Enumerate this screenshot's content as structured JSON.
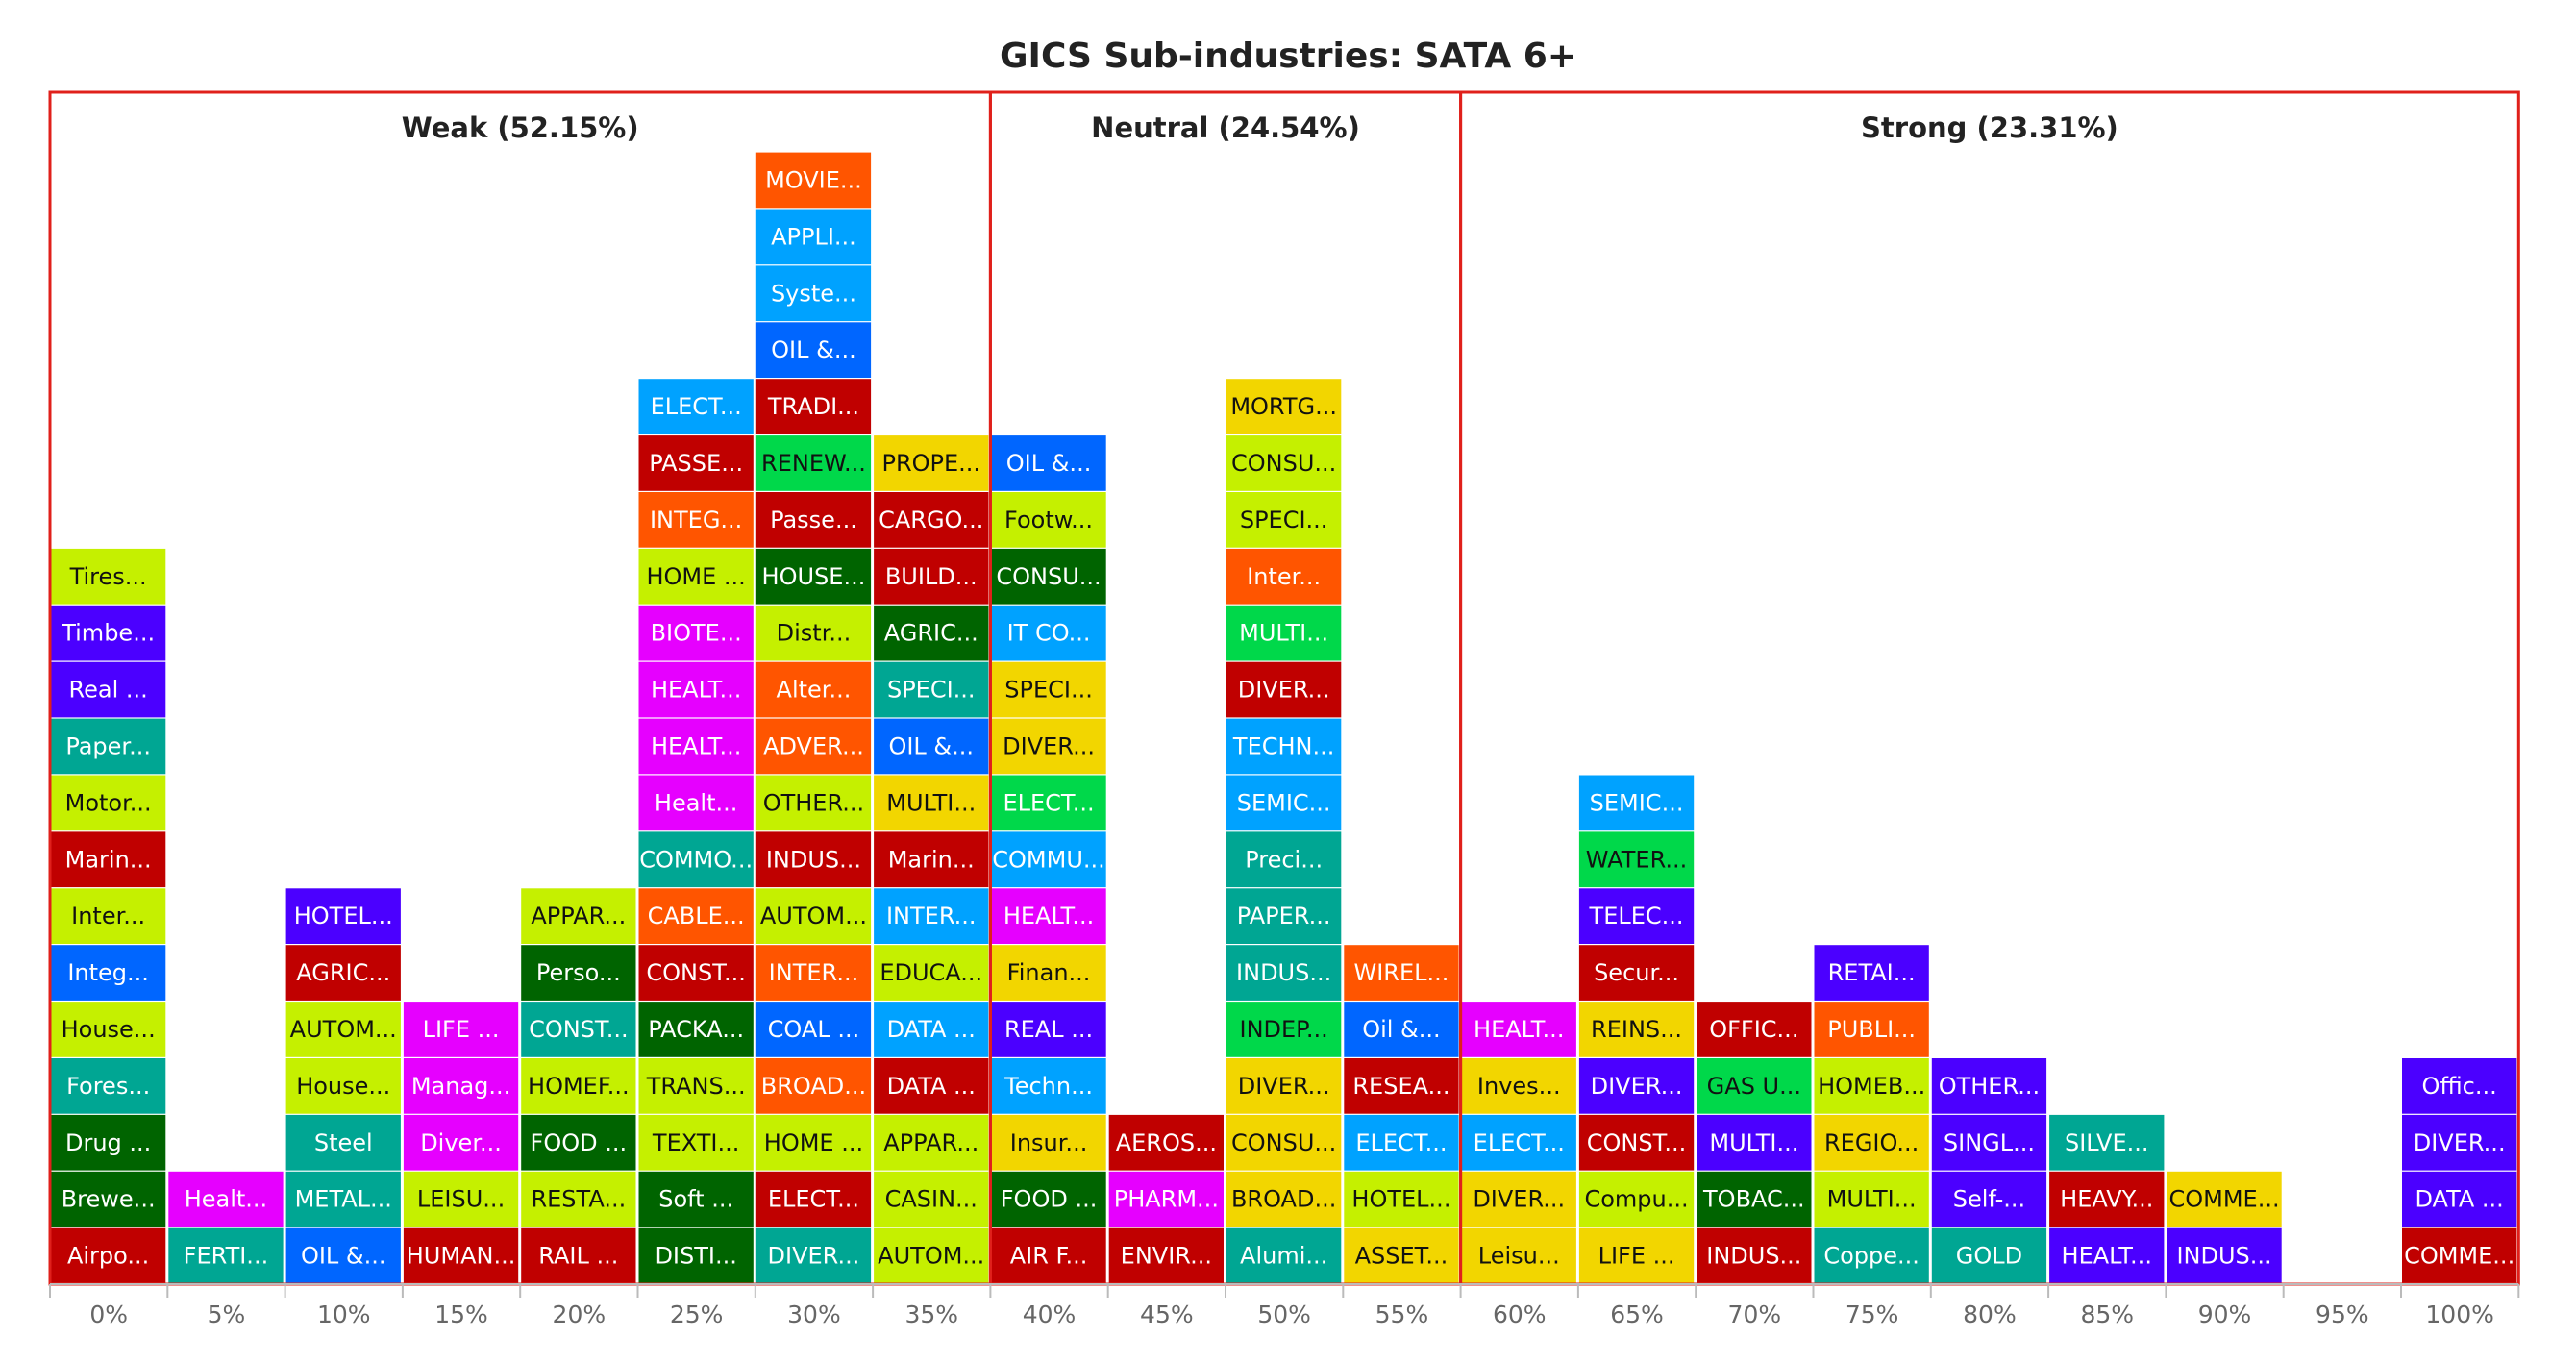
{
  "chart_data": {
    "type": "bar",
    "title": "GICS Sub-industries: SATA 6+",
    "zones": [
      {
        "label": "Weak (52.15%)",
        "from": 0,
        "to": 8
      },
      {
        "label": "Neutral (24.54%)",
        "from": 8,
        "to": 12
      },
      {
        "label": "Strong (23.31%)",
        "from": 12,
        "to": 21
      }
    ],
    "categories": [
      "0%",
      "5%",
      "10%",
      "15%",
      "20%",
      "25%",
      "30%",
      "35%",
      "40%",
      "45%",
      "50%",
      "55%",
      "60%",
      "65%",
      "70%",
      "75%",
      "80%",
      "85%",
      "90%",
      "95%",
      "100%"
    ],
    "columns": [
      [
        {
          "t": "Airpo...",
          "c": "#C00000",
          "k": "#ffffff"
        },
        {
          "t": "Brewe...",
          "c": "#006400",
          "k": "#ffffff"
        },
        {
          "t": "Drug ...",
          "c": "#006400",
          "k": "#ffffff"
        },
        {
          "t": "Fores...",
          "c": "#00A693",
          "k": "#ffffff"
        },
        {
          "t": "House...",
          "c": "#C5F000",
          "k": "#111111"
        },
        {
          "t": "Integ...",
          "c": "#0066FF",
          "k": "#ffffff"
        },
        {
          "t": "Inter...",
          "c": "#C5F000",
          "k": "#111111"
        },
        {
          "t": "Marin...",
          "c": "#C00000",
          "k": "#ffffff"
        },
        {
          "t": "Motor...",
          "c": "#C5F000",
          "k": "#111111"
        },
        {
          "t": "Paper...",
          "c": "#00A693",
          "k": "#ffffff"
        },
        {
          "t": "Real ...",
          "c": "#4B00FF",
          "k": "#ffffff"
        },
        {
          "t": "Timbe...",
          "c": "#4B00FF",
          "k": "#ffffff"
        },
        {
          "t": "Tires...",
          "c": "#C5F000",
          "k": "#111111"
        }
      ],
      [
        {
          "t": "FERTI...",
          "c": "#00A693",
          "k": "#ffffff"
        },
        {
          "t": "Healt...",
          "c": "#E600FF",
          "k": "#ffffff"
        }
      ],
      [
        {
          "t": "OIL &...",
          "c": "#0066FF",
          "k": "#ffffff"
        },
        {
          "t": "METAL...",
          "c": "#00A693",
          "k": "#ffffff"
        },
        {
          "t": "Steel",
          "c": "#00A693",
          "k": "#ffffff"
        },
        {
          "t": "House...",
          "c": "#C5F000",
          "k": "#111111"
        },
        {
          "t": "AUTOM...",
          "c": "#C5F000",
          "k": "#111111"
        },
        {
          "t": "AGRIC...",
          "c": "#C00000",
          "k": "#ffffff"
        },
        {
          "t": "HOTEL...",
          "c": "#4B00FF",
          "k": "#ffffff"
        }
      ],
      [
        {
          "t": "HUMAN...",
          "c": "#C00000",
          "k": "#ffffff"
        },
        {
          "t": "LEISU...",
          "c": "#C5F000",
          "k": "#111111"
        },
        {
          "t": "Diver...",
          "c": "#E600FF",
          "k": "#ffffff"
        },
        {
          "t": "Manag...",
          "c": "#E600FF",
          "k": "#ffffff"
        },
        {
          "t": "LIFE ...",
          "c": "#E600FF",
          "k": "#ffffff"
        }
      ],
      [
        {
          "t": "RAIL ...",
          "c": "#C00000",
          "k": "#ffffff"
        },
        {
          "t": "RESTA...",
          "c": "#C5F000",
          "k": "#111111"
        },
        {
          "t": "FOOD ...",
          "c": "#006400",
          "k": "#ffffff"
        },
        {
          "t": "HOMEF...",
          "c": "#C5F000",
          "k": "#111111"
        },
        {
          "t": "CONST...",
          "c": "#00A693",
          "k": "#ffffff"
        },
        {
          "t": "Perso...",
          "c": "#006400",
          "k": "#ffffff"
        },
        {
          "t": "APPAR...",
          "c": "#C5F000",
          "k": "#111111"
        }
      ],
      [
        {
          "t": "DISTI...",
          "c": "#006400",
          "k": "#ffffff"
        },
        {
          "t": "Soft ...",
          "c": "#006400",
          "k": "#ffffff"
        },
        {
          "t": "TEXTI...",
          "c": "#C5F000",
          "k": "#111111"
        },
        {
          "t": "TRANS...",
          "c": "#C5F000",
          "k": "#111111"
        },
        {
          "t": "PACKA...",
          "c": "#006400",
          "k": "#ffffff"
        },
        {
          "t": "CONST...",
          "c": "#C00000",
          "k": "#ffffff"
        },
        {
          "t": "CABLE...",
          "c": "#FF5500",
          "k": "#ffffff"
        },
        {
          "t": "COMMO...",
          "c": "#00A693",
          "k": "#ffffff"
        },
        {
          "t": "Healt...",
          "c": "#E600FF",
          "k": "#ffffff"
        },
        {
          "t": "HEALT...",
          "c": "#E600FF",
          "k": "#ffffff"
        },
        {
          "t": "HEALT...",
          "c": "#E600FF",
          "k": "#ffffff"
        },
        {
          "t": "BIOTE...",
          "c": "#E600FF",
          "k": "#ffffff"
        },
        {
          "t": "HOME ...",
          "c": "#C5F000",
          "k": "#111111"
        },
        {
          "t": "INTEG...",
          "c": "#FF5500",
          "k": "#ffffff"
        },
        {
          "t": "PASSE...",
          "c": "#C00000",
          "k": "#ffffff"
        },
        {
          "t": "ELECT...",
          "c": "#00A2FF",
          "k": "#ffffff"
        }
      ],
      [
        {
          "t": "DIVER...",
          "c": "#00A693",
          "k": "#ffffff"
        },
        {
          "t": "ELECT...",
          "c": "#C00000",
          "k": "#ffffff"
        },
        {
          "t": "HOME ...",
          "c": "#C5F000",
          "k": "#111111"
        },
        {
          "t": "BROAD...",
          "c": "#FF5500",
          "k": "#ffffff"
        },
        {
          "t": "COAL ...",
          "c": "#0066FF",
          "k": "#ffffff"
        },
        {
          "t": "INTER...",
          "c": "#FF5500",
          "k": "#ffffff"
        },
        {
          "t": "AUTOM...",
          "c": "#C5F000",
          "k": "#111111"
        },
        {
          "t": "INDUS...",
          "c": "#C00000",
          "k": "#ffffff"
        },
        {
          "t": "OTHER...",
          "c": "#C5F000",
          "k": "#111111"
        },
        {
          "t": "ADVER...",
          "c": "#FF5500",
          "k": "#ffffff"
        },
        {
          "t": "Alter...",
          "c": "#FF5500",
          "k": "#ffffff"
        },
        {
          "t": "Distr...",
          "c": "#C5F000",
          "k": "#111111"
        },
        {
          "t": "HOUSE...",
          "c": "#006400",
          "k": "#ffffff"
        },
        {
          "t": "Passe...",
          "c": "#C00000",
          "k": "#ffffff"
        },
        {
          "t": "RENEW...",
          "c": "#00D84A",
          "k": "#111111"
        },
        {
          "t": "TRADI...",
          "c": "#C00000",
          "k": "#ffffff"
        },
        {
          "t": "OIL &...",
          "c": "#0066FF",
          "k": "#ffffff"
        },
        {
          "t": "Syste...",
          "c": "#00A2FF",
          "k": "#ffffff"
        },
        {
          "t": "APPLI...",
          "c": "#00A2FF",
          "k": "#ffffff"
        },
        {
          "t": "MOVIE...",
          "c": "#FF5500",
          "k": "#ffffff"
        }
      ],
      [
        {
          "t": "AUTOM...",
          "c": "#C5F000",
          "k": "#111111"
        },
        {
          "t": "CASIN...",
          "c": "#C5F000",
          "k": "#111111"
        },
        {
          "t": "APPAR...",
          "c": "#C5F000",
          "k": "#111111"
        },
        {
          "t": "DATA ...",
          "c": "#C00000",
          "k": "#ffffff"
        },
        {
          "t": "DATA ...",
          "c": "#00A2FF",
          "k": "#ffffff"
        },
        {
          "t": "EDUCA...",
          "c": "#C5F000",
          "k": "#111111"
        },
        {
          "t": "INTER...",
          "c": "#00A2FF",
          "k": "#ffffff"
        },
        {
          "t": "Marin...",
          "c": "#C00000",
          "k": "#ffffff"
        },
        {
          "t": "MULTI...",
          "c": "#F2D600",
          "k": "#111111"
        },
        {
          "t": "OIL &...",
          "c": "#0066FF",
          "k": "#ffffff"
        },
        {
          "t": "SPECI...",
          "c": "#00A693",
          "k": "#ffffff"
        },
        {
          "t": "AGRIC...",
          "c": "#006400",
          "k": "#ffffff"
        },
        {
          "t": "BUILD...",
          "c": "#C00000",
          "k": "#ffffff"
        },
        {
          "t": "CARGO...",
          "c": "#C00000",
          "k": "#ffffff"
        },
        {
          "t": "PROPE...",
          "c": "#F2D600",
          "k": "#111111"
        }
      ],
      [
        {
          "t": "AIR F...",
          "c": "#C00000",
          "k": "#ffffff"
        },
        {
          "t": "FOOD ...",
          "c": "#006400",
          "k": "#ffffff"
        },
        {
          "t": "Insur...",
          "c": "#F2D600",
          "k": "#111111"
        },
        {
          "t": "Techn...",
          "c": "#00A2FF",
          "k": "#ffffff"
        },
        {
          "t": "REAL ...",
          "c": "#4B00FF",
          "k": "#ffffff"
        },
        {
          "t": "Finan...",
          "c": "#F2D600",
          "k": "#111111"
        },
        {
          "t": "HEALT...",
          "c": "#E600FF",
          "k": "#ffffff"
        },
        {
          "t": "COMMU...",
          "c": "#00A2FF",
          "k": "#ffffff"
        },
        {
          "t": "ELECT...",
          "c": "#00D84A",
          "k": "#ffffff"
        },
        {
          "t": "DIVER...",
          "c": "#F2D600",
          "k": "#111111"
        },
        {
          "t": "SPECI...",
          "c": "#F2D600",
          "k": "#111111"
        },
        {
          "t": "IT CO...",
          "c": "#00A2FF",
          "k": "#ffffff"
        },
        {
          "t": "CONSU...",
          "c": "#006400",
          "k": "#ffffff"
        },
        {
          "t": "Footw...",
          "c": "#C5F000",
          "k": "#111111"
        },
        {
          "t": "OIL &...",
          "c": "#0066FF",
          "k": "#ffffff"
        }
      ],
      [
        {
          "t": "ENVIR...",
          "c": "#C00000",
          "k": "#ffffff"
        },
        {
          "t": "PHARM...",
          "c": "#E600FF",
          "k": "#ffffff"
        },
        {
          "t": "AEROS...",
          "c": "#C00000",
          "k": "#ffffff"
        }
      ],
      [
        {
          "t": "Alumi...",
          "c": "#00A693",
          "k": "#ffffff"
        },
        {
          "t": "BROAD...",
          "c": "#F2D600",
          "k": "#111111"
        },
        {
          "t": "CONSU...",
          "c": "#F2D600",
          "k": "#111111"
        },
        {
          "t": "DIVER...",
          "c": "#F2D600",
          "k": "#111111"
        },
        {
          "t": "INDEP...",
          "c": "#00D84A",
          "k": "#111111"
        },
        {
          "t": "INDUS...",
          "c": "#00A693",
          "k": "#ffffff"
        },
        {
          "t": "PAPER...",
          "c": "#00A693",
          "k": "#ffffff"
        },
        {
          "t": "Preci...",
          "c": "#00A693",
          "k": "#ffffff"
        },
        {
          "t": "SEMIC...",
          "c": "#00A2FF",
          "k": "#ffffff"
        },
        {
          "t": "TECHN...",
          "c": "#00A2FF",
          "k": "#ffffff"
        },
        {
          "t": "DIVER...",
          "c": "#C00000",
          "k": "#ffffff"
        },
        {
          "t": "MULTI...",
          "c": "#00D84A",
          "k": "#ffffff"
        },
        {
          "t": "Inter...",
          "c": "#FF5500",
          "k": "#ffffff"
        },
        {
          "t": "SPECI...",
          "c": "#C5F000",
          "k": "#111111"
        },
        {
          "t": "CONSU...",
          "c": "#C5F000",
          "k": "#111111"
        },
        {
          "t": "MORTG...",
          "c": "#F2D600",
          "k": "#111111"
        }
      ],
      [
        {
          "t": "ASSET...",
          "c": "#F2D600",
          "k": "#111111"
        },
        {
          "t": "HOTEL...",
          "c": "#C5F000",
          "k": "#111111"
        },
        {
          "t": "ELECT...",
          "c": "#00A2FF",
          "k": "#ffffff"
        },
        {
          "t": "RESEA...",
          "c": "#C00000",
          "k": "#ffffff"
        },
        {
          "t": "Oil &...",
          "c": "#0066FF",
          "k": "#ffffff"
        },
        {
          "t": "WIREL...",
          "c": "#FF5500",
          "k": "#ffffff"
        }
      ],
      [
        {
          "t": "Leisu...",
          "c": "#F2D600",
          "k": "#111111"
        },
        {
          "t": "DIVER...",
          "c": "#F2D600",
          "k": "#111111"
        },
        {
          "t": "ELECT...",
          "c": "#00A2FF",
          "k": "#ffffff"
        },
        {
          "t": "Inves...",
          "c": "#F2D600",
          "k": "#111111"
        },
        {
          "t": "HEALT...",
          "c": "#E600FF",
          "k": "#ffffff"
        }
      ],
      [
        {
          "t": "LIFE ...",
          "c": "#F2D600",
          "k": "#111111"
        },
        {
          "t": "Compu...",
          "c": "#C5F000",
          "k": "#111111"
        },
        {
          "t": "CONST...",
          "c": "#C00000",
          "k": "#ffffff"
        },
        {
          "t": "DIVER...",
          "c": "#4B00FF",
          "k": "#ffffff"
        },
        {
          "t": "REINS...",
          "c": "#F2D600",
          "k": "#111111"
        },
        {
          "t": "Secur...",
          "c": "#C00000",
          "k": "#ffffff"
        },
        {
          "t": "TELEC...",
          "c": "#4B00FF",
          "k": "#ffffff"
        },
        {
          "t": "WATER...",
          "c": "#00D84A",
          "k": "#111111"
        },
        {
          "t": "SEMIC...",
          "c": "#00A2FF",
          "k": "#ffffff"
        }
      ],
      [
        {
          "t": "INDUS...",
          "c": "#C00000",
          "k": "#ffffff"
        },
        {
          "t": "TOBAC...",
          "c": "#006400",
          "k": "#ffffff"
        },
        {
          "t": "MULTI...",
          "c": "#4B00FF",
          "k": "#ffffff"
        },
        {
          "t": "GAS U...",
          "c": "#00D84A",
          "k": "#111111"
        },
        {
          "t": "OFFIC...",
          "c": "#C00000",
          "k": "#ffffff"
        }
      ],
      [
        {
          "t": "Coppe...",
          "c": "#00A693",
          "k": "#ffffff"
        },
        {
          "t": "MULTI...",
          "c": "#C5F000",
          "k": "#111111"
        },
        {
          "t": "REGIO...",
          "c": "#F2D600",
          "k": "#111111"
        },
        {
          "t": "HOMEB...",
          "c": "#C5F000",
          "k": "#111111"
        },
        {
          "t": "PUBLI...",
          "c": "#FF5500",
          "k": "#ffffff"
        },
        {
          "t": "RETAI...",
          "c": "#4B00FF",
          "k": "#ffffff"
        }
      ],
      [
        {
          "t": "GOLD",
          "c": "#00A693",
          "k": "#ffffff"
        },
        {
          "t": "Self-...",
          "c": "#4B00FF",
          "k": "#ffffff"
        },
        {
          "t": "SINGL...",
          "c": "#4B00FF",
          "k": "#ffffff"
        },
        {
          "t": "OTHER...",
          "c": "#4B00FF",
          "k": "#ffffff"
        }
      ],
      [
        {
          "t": "HEALT...",
          "c": "#4B00FF",
          "k": "#ffffff"
        },
        {
          "t": "HEAVY...",
          "c": "#C00000",
          "k": "#ffffff"
        },
        {
          "t": "SILVE...",
          "c": "#00A693",
          "k": "#ffffff"
        }
      ],
      [
        {
          "t": "INDUS...",
          "c": "#4B00FF",
          "k": "#ffffff"
        },
        {
          "t": "COMME...",
          "c": "#F2D600",
          "k": "#111111"
        }
      ],
      [],
      [
        {
          "t": "COMME...",
          "c": "#C00000",
          "k": "#ffffff"
        },
        {
          "t": "DATA ...",
          "c": "#4B00FF",
          "k": "#ffffff"
        },
        {
          "t": "DIVER...",
          "c": "#4B00FF",
          "k": "#ffffff"
        },
        {
          "t": "Offic...",
          "c": "#4B00FF",
          "k": "#ffffff"
        }
      ]
    ]
  },
  "colors": {
    "zone_border": "#E0201B",
    "axis": "#bbbbbb",
    "title": "#222222",
    "tick": "#666666"
  }
}
